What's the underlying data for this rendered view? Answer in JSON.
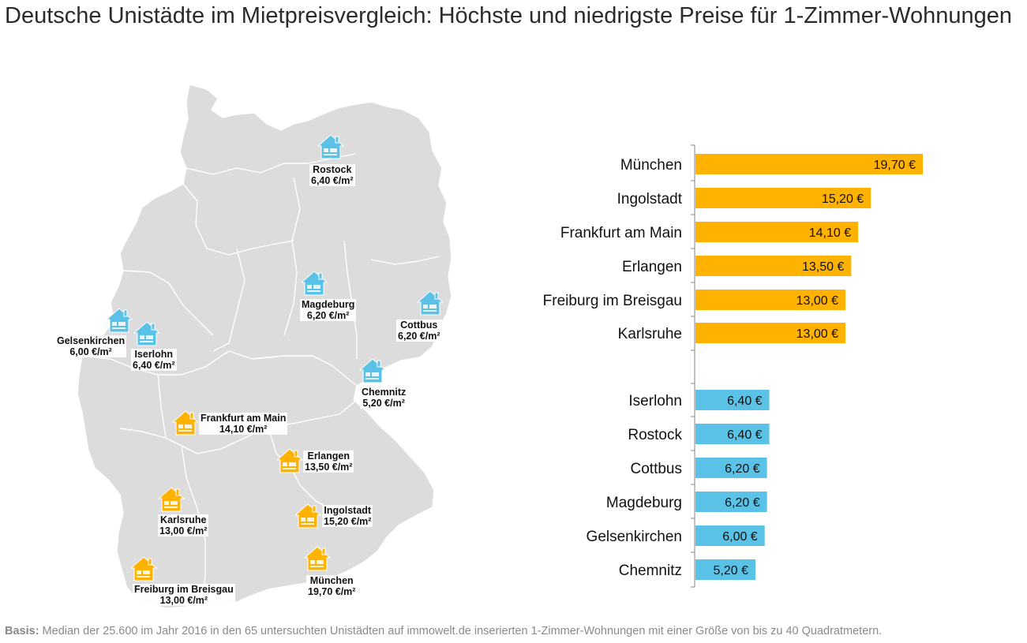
{
  "title": "Deutsche Unistädte im Mietpreisvergleich: Höchste und niedrigste Preise für 1-Zimmer-Wohnungen",
  "footer": {
    "bold": "Basis:",
    "text": " Median der 25.600 im Jahr 2016 in den 65 untersuchten Unistädten auf immowelt.de inserierten 1-Zimmer-Wohnungen mit einer Größe von bis zu 40 Quadratmetern."
  },
  "colors": {
    "high": "#FFB300",
    "low": "#5BC2E7",
    "map_fill": "#DCDCDC",
    "map_border": "#ffffff"
  },
  "map_markers": [
    {
      "name": "Rostock",
      "price": "6,40 €/m²",
      "group": "low",
      "icon": "house-icon"
    },
    {
      "name": "Magdeburg",
      "price": "6,20 €/m²",
      "group": "low",
      "icon": "house-icon"
    },
    {
      "name": "Cottbus",
      "price": "6,20 €/m²",
      "group": "low",
      "icon": "house-icon"
    },
    {
      "name": "Gelsenkirchen",
      "price": "6,00 €/m²",
      "group": "low",
      "icon": "house-icon"
    },
    {
      "name": "Iserlohn",
      "price": "6,40 €/m²",
      "group": "low",
      "icon": "house-icon"
    },
    {
      "name": "Chemnitz",
      "price": "5,20 €/m²",
      "group": "low",
      "icon": "house-icon"
    },
    {
      "name": "Frankfurt am Main",
      "price": "14,10 €/m²",
      "group": "high",
      "icon": "house-icon"
    },
    {
      "name": "Erlangen",
      "price": "13,50 €/m²",
      "group": "high",
      "icon": "house-icon"
    },
    {
      "name": "Karlsruhe",
      "price": "13,00 €/m²",
      "group": "high",
      "icon": "house-icon"
    },
    {
      "name": "Ingolstadt",
      "price": "15,20 €/m²",
      "group": "high",
      "icon": "house-icon"
    },
    {
      "name": "Freiburg im Breisgau",
      "price": "13,00 €/m²",
      "group": "high",
      "icon": "house-icon"
    },
    {
      "name": "München",
      "price": "19,70 €/m²",
      "group": "high",
      "icon": "house-icon"
    }
  ],
  "chart_data": {
    "type": "bar",
    "orientation": "horizontal",
    "categories": [
      "München",
      "Ingolstadt",
      "Frankfurt am Main",
      "Erlangen",
      "Freiburg im Breisgau",
      "Karlsruhe",
      "Iserlohn",
      "Rostock",
      "Cottbus",
      "Magdeburg",
      "Gelsenkirchen",
      "Chemnitz"
    ],
    "values": [
      19.7,
      15.2,
      14.1,
      13.5,
      13.0,
      13.0,
      6.4,
      6.4,
      6.2,
      6.2,
      6.0,
      5.2
    ],
    "labels": [
      "19,70 €",
      "15,20 €",
      "14,10 €",
      "13,50 €",
      "13,00 €",
      "13,00 €",
      "6,40 €",
      "6,40 €",
      "6,20 €",
      "6,20 €",
      "6,00 €",
      "5,20 €"
    ],
    "groups": [
      "high",
      "high",
      "high",
      "high",
      "high",
      "high",
      "low",
      "low",
      "low",
      "low",
      "low",
      "low"
    ],
    "title": "",
    "xlabel": "",
    "ylabel": "",
    "xlim": [
      0,
      19.7
    ],
    "grid": false,
    "legend": "none"
  }
}
